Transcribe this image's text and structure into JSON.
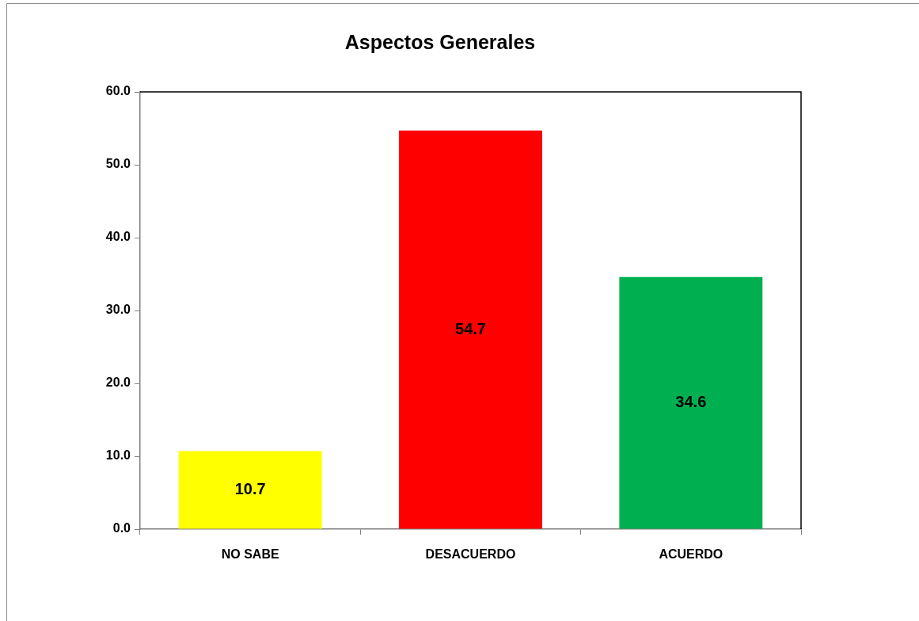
{
  "chart_data": {
    "type": "bar",
    "title": "Aspectos Generales",
    "categories": [
      "NO SABE",
      "DESACUERDO",
      "ACUERDO"
    ],
    "values": [
      10.7,
      54.7,
      34.6
    ],
    "colors": [
      "#ffff00",
      "#ff0000",
      "#00b050"
    ],
    "ylim": [
      0,
      60
    ],
    "yticks": [
      {
        "value": 0,
        "label": "0.0"
      },
      {
        "value": 10,
        "label": "10.0"
      },
      {
        "value": 20,
        "label": "20.0"
      },
      {
        "value": 30,
        "label": "30.0"
      },
      {
        "value": 40,
        "label": "40.0"
      },
      {
        "value": 50,
        "label": "50.0"
      },
      {
        "value": 60,
        "label": "60.0"
      }
    ],
    "data_labels": true
  }
}
